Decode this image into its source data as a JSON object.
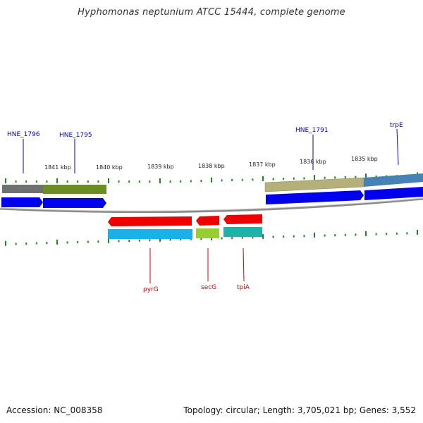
{
  "title": "Hyphomonas neptunium ATCC 15444, complete genome",
  "footer": {
    "accession": "Accession: NC_008358",
    "summary": "Topology: circular; Length: 3,705,021 bp; Genes: 3,552"
  },
  "kbp_labels": [
    "1841 kbp",
    "1840 kbp",
    "1839 kbp",
    "1838 kbp",
    "1837 kbp",
    "1836 kbp",
    "1835 kbp"
  ],
  "top_gene_labels": [
    "HNE_1796",
    "HNE_1795",
    "HNE_1791",
    "trpE"
  ],
  "bottom_gene_labels": [
    "pyrG",
    "secG",
    "tpiA"
  ],
  "colors": {
    "forward_label": "#0000c8",
    "reverse_label": "#cc0000",
    "tick": "#1a8a1a",
    "backbone": "#8a8a8a",
    "blue_arrow": "#0000ee",
    "red_arrow": "#ee0000",
    "grey_box": "#707070",
    "olive_box": "#6b8e23",
    "khaki_box": "#b5b07a",
    "steelblue_box": "#4682b4",
    "cyan_box": "#1ab0e8",
    "lime_box": "#9acd32",
    "teal_box": "#20b2aa"
  }
}
